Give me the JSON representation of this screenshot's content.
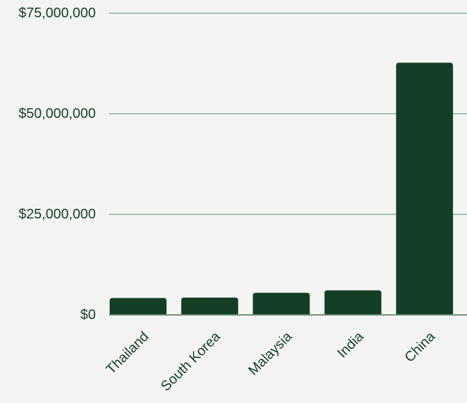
{
  "chart_data": {
    "type": "bar",
    "categories": [
      "Thailand",
      "South Korea",
      "Malaysia",
      "India",
      "China"
    ],
    "values": [
      4200000,
      4300000,
      5500000,
      6100000,
      62700000
    ],
    "ylim": [
      0,
      75000000
    ],
    "yticks": [
      {
        "value": 0,
        "label": "$0"
      },
      {
        "value": 25000000,
        "label": "$25,000,000"
      },
      {
        "value": 50000000,
        "label": "$50,000,000"
      },
      {
        "value": 75000000,
        "label": "$75,000,000"
      }
    ],
    "grid": true,
    "legend": "none",
    "title": "",
    "xlabel": "",
    "ylabel": "",
    "colors": {
      "bar": "#143f27",
      "grid": "#a9bfb1",
      "baseline": "#6f8f7c",
      "text": "#143f27",
      "background": "#f4f5f2"
    }
  }
}
